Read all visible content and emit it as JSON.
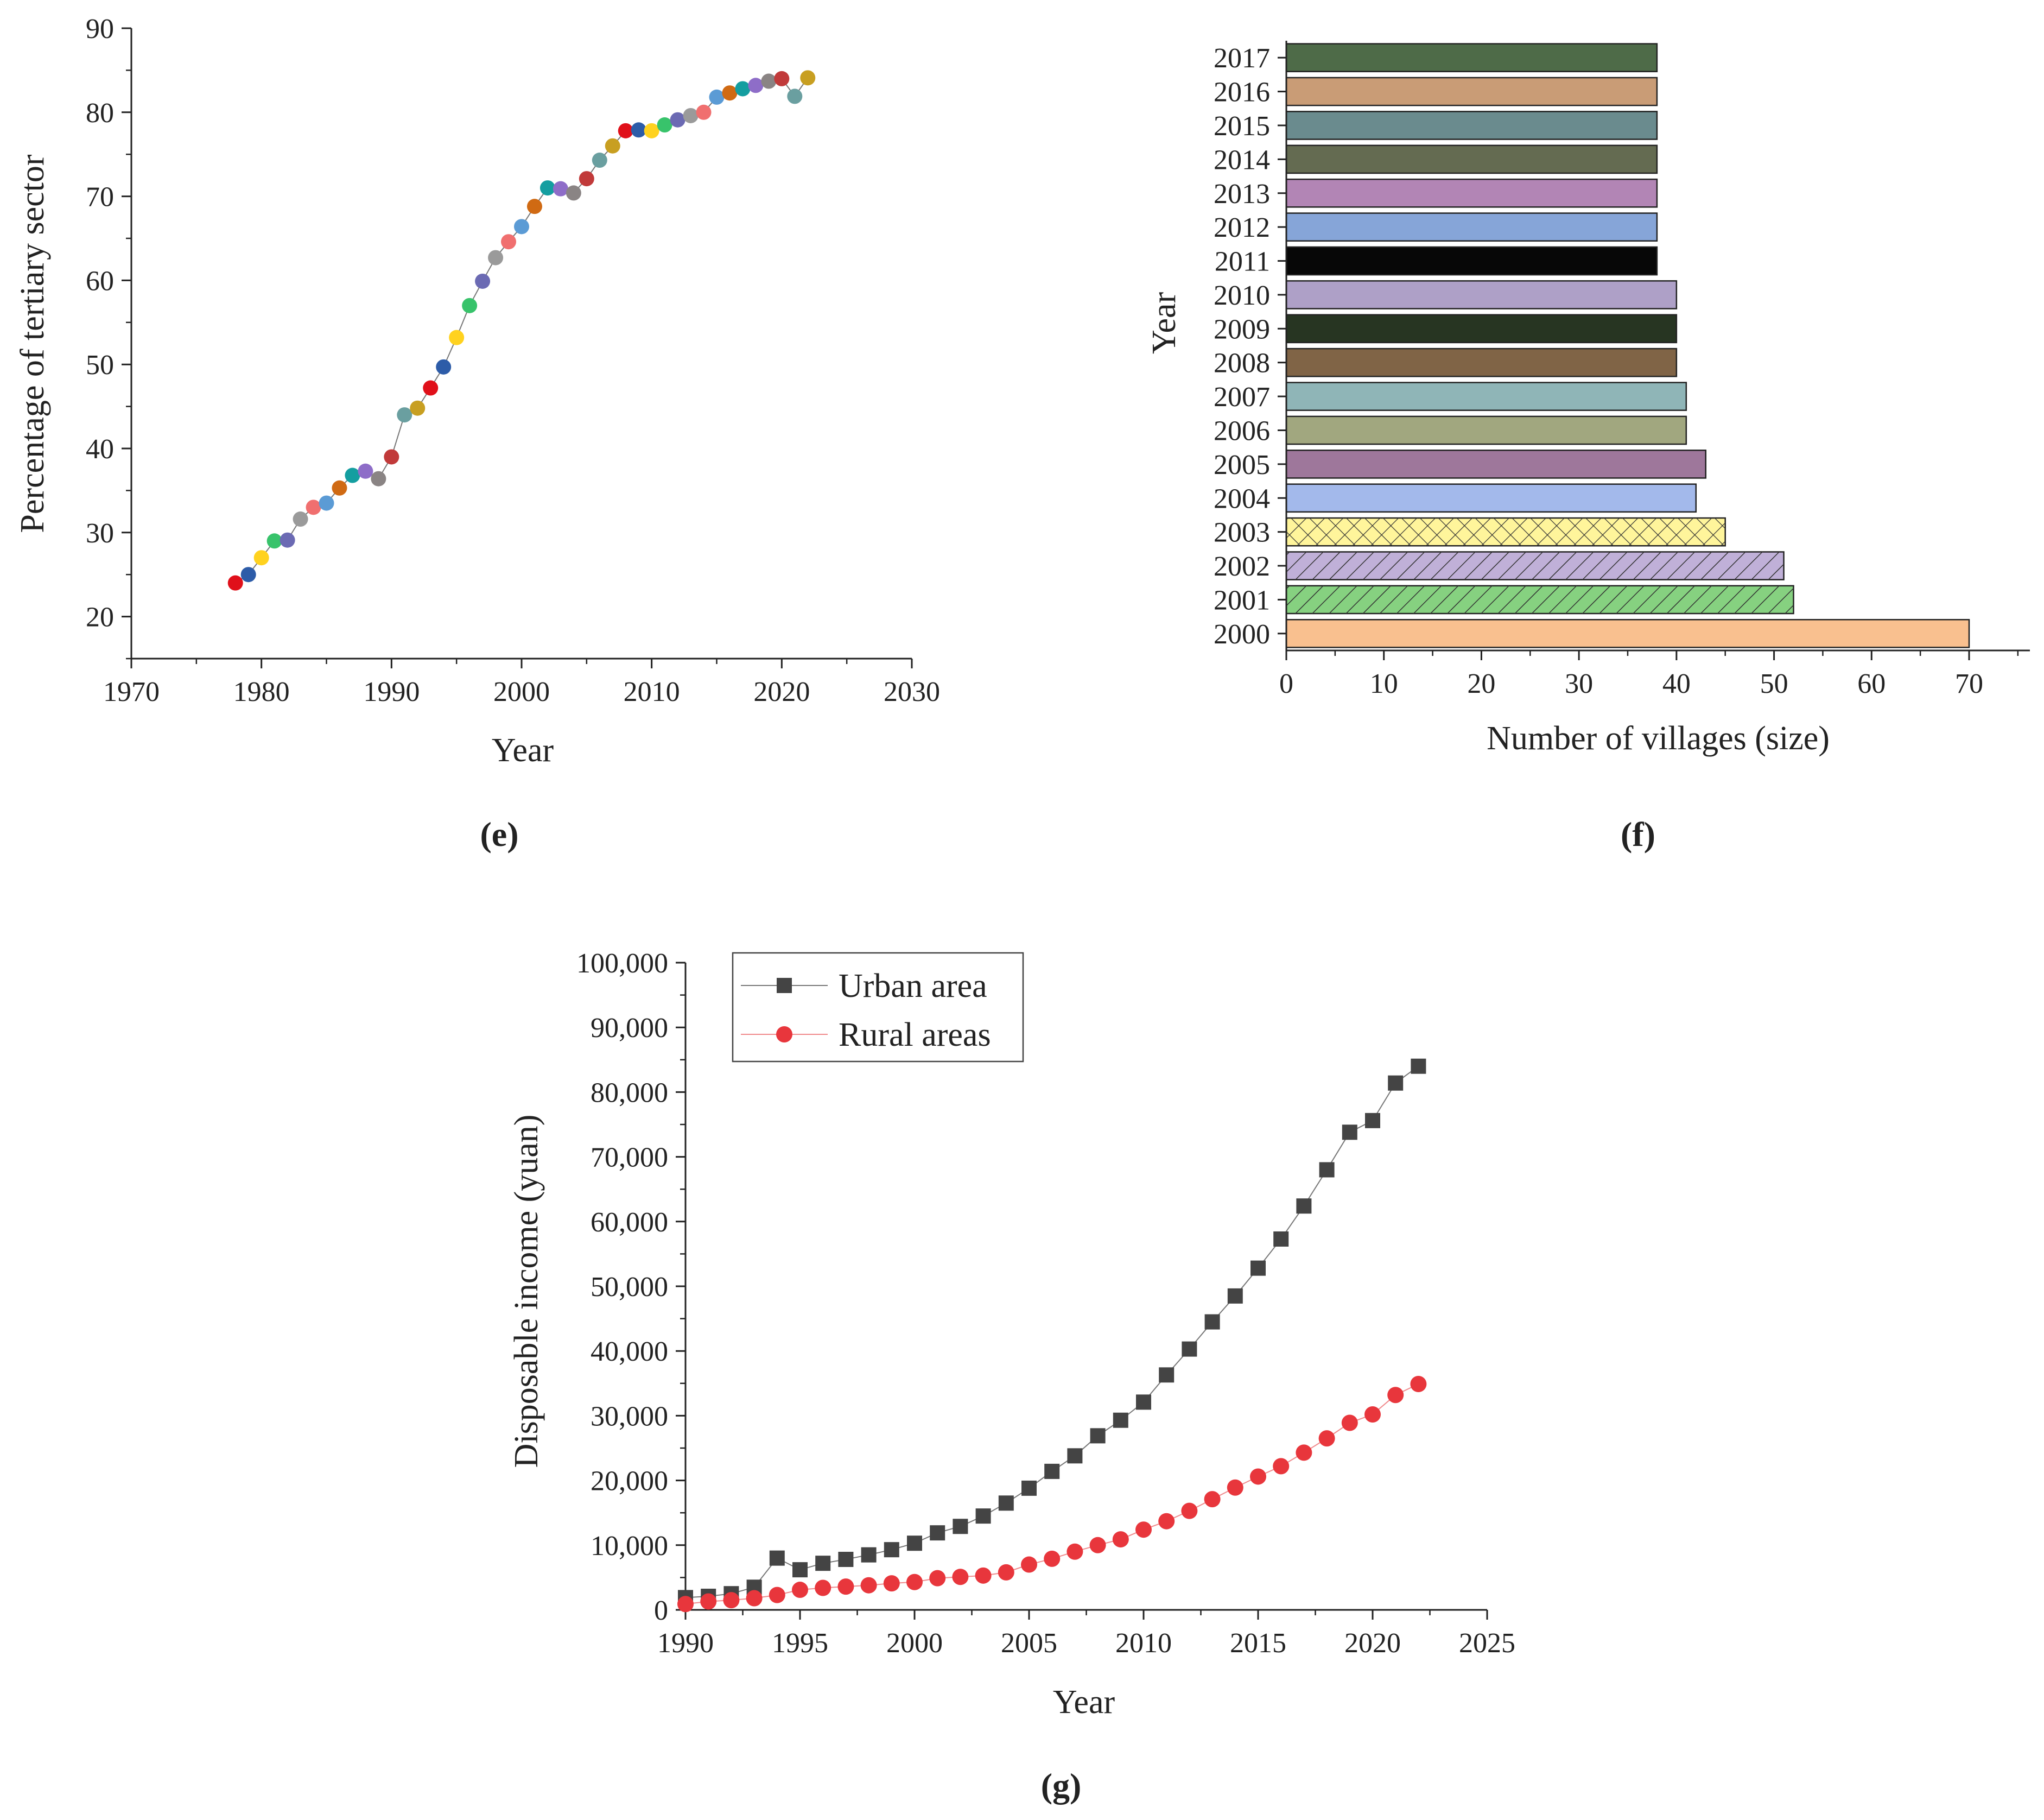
{
  "panels": {
    "e": {
      "label_open": "(",
      "label_letter": "e",
      "label_close": ")"
    },
    "f": {
      "label_open": "(",
      "label_letter": "f",
      "label_close": ")"
    },
    "g": {
      "label_open": "(",
      "label_letter": "g",
      "label_close": ")"
    }
  },
  "chart_data": [
    {
      "id": "e",
      "type": "scatter",
      "title": "",
      "xlabel": "Year",
      "ylabel": "Percentage of tertiary sector",
      "xlim": [
        1970,
        2030
      ],
      "ylim": [
        15,
        90
      ],
      "xticks": [
        1970,
        1980,
        1990,
        2000,
        2010,
        2020,
        2030
      ],
      "yticks": [
        20,
        30,
        40,
        50,
        60,
        70,
        80,
        90
      ],
      "grid": false,
      "connected": true,
      "x": [
        1978,
        1979,
        1980,
        1981,
        1982,
        1983,
        1984,
        1985,
        1986,
        1987,
        1988,
        1989,
        1990,
        1991,
        1992,
        1993,
        1994,
        1995,
        1996,
        1997,
        1998,
        1999,
        2000,
        2001,
        2002,
        2003,
        2004,
        2005,
        2006,
        2007,
        2008,
        2009,
        2010,
        2011,
        2012,
        2013,
        2014,
        2015,
        2016,
        2017,
        2018,
        2019,
        2020,
        2021,
        2022
      ],
      "y": [
        24.0,
        25.0,
        27.0,
        29.0,
        29.1,
        31.6,
        33.0,
        33.5,
        35.3,
        36.8,
        37.3,
        36.4,
        39.0,
        44.0,
        44.8,
        47.2,
        49.7,
        53.2,
        57.0,
        59.9,
        62.7,
        64.6,
        66.4,
        68.8,
        71.0,
        70.9,
        70.4,
        72.1,
        74.3,
        76.0,
        77.8,
        77.9,
        77.8,
        78.5,
        79.1,
        79.6,
        80.0,
        81.8,
        82.3,
        82.8,
        83.2,
        83.7,
        84.0,
        81.9,
        84.1
      ],
      "point_colors": [
        "#e0101a",
        "#2d5ca8",
        "#ffd21f",
        "#38c36b",
        "#6b6ab3",
        "#9a9a9a",
        "#f06f6f",
        "#5b9bd5",
        "#d06a13",
        "#149ea0",
        "#8e6dc8",
        "#8a8484",
        "#c13a3a",
        "#6a9fa0",
        "#c89f21",
        "#e0101a",
        "#2d5ca8",
        "#ffd21f",
        "#38c36b",
        "#6b6ab3",
        "#9a9a9a",
        "#f06f6f",
        "#5b9bd5",
        "#d06a13",
        "#149ea0",
        "#8e6dc8",
        "#8a8484",
        "#c13a3a",
        "#6a9fa0",
        "#c89f21",
        "#e0101a",
        "#2d5ca8",
        "#ffd21f",
        "#38c36b",
        "#6b6ab3",
        "#9a9a9a",
        "#f06f6f",
        "#5b9bd5",
        "#d06a13",
        "#149ea0",
        "#8e6dc8",
        "#8a8484",
        "#c13a3a",
        "#6a9fa0",
        "#c89f21"
      ]
    },
    {
      "id": "f",
      "type": "bar",
      "orientation": "horizontal",
      "title": "",
      "xlabel": "Number of villages (size)",
      "ylabel": "Year",
      "xlim": [
        0,
        75
      ],
      "xticks": [
        0,
        10,
        20,
        30,
        40,
        50,
        60,
        70
      ],
      "grid": false,
      "categories": [
        "2000",
        "2001",
        "2002",
        "2003",
        "2004",
        "2005",
        "2006",
        "2007",
        "2008",
        "2009",
        "2010",
        "2011",
        "2012",
        "2013",
        "2014",
        "2015",
        "2016",
        "2017"
      ],
      "values": [
        70,
        52,
        51,
        45,
        42,
        43,
        41,
        41,
        40,
        40,
        40,
        38,
        38,
        38,
        38,
        38,
        38,
        38
      ],
      "colors": [
        "#f9c08f",
        "#86d180",
        "#c0b0d8",
        "#fff59b",
        "#a3b9eb",
        "#9e779b",
        "#a1a77f",
        "#8fb5b7",
        "#806446",
        "#273522",
        "#aea0c7",
        "#070707",
        "#86a5d8",
        "#b285b5",
        "#646b51",
        "#6a8b8e",
        "#c99c76",
        "#4e6b48"
      ],
      "patterns": [
        "none",
        "diag",
        "diag",
        "cross",
        "none",
        "none",
        "none",
        "none",
        "none",
        "none",
        "none",
        "none",
        "none",
        "none",
        "none",
        "none",
        "none",
        "none"
      ]
    },
    {
      "id": "g",
      "type": "line",
      "title": "",
      "xlabel": "Year",
      "ylabel": "Disposable income (yuan)",
      "xlim": [
        1990,
        2025
      ],
      "ylim": [
        0,
        100000
      ],
      "xticks": [
        1990,
        1995,
        2000,
        2005,
        2010,
        2015,
        2020,
        2025
      ],
      "yticks": [
        0,
        10000,
        20000,
        30000,
        40000,
        50000,
        60000,
        70000,
        80000,
        90000,
        100000
      ],
      "ytick_labels": [
        "0",
        "10,000",
        "20,000",
        "30,000",
        "40,000",
        "50,000",
        "60,000",
        "70,000",
        "80,000",
        "90,000",
        "100,000"
      ],
      "grid": false,
      "legend": "top-left",
      "x": [
        1990,
        1991,
        1992,
        1993,
        1994,
        1995,
        1996,
        1997,
        1998,
        1999,
        2000,
        2001,
        2002,
        2003,
        2004,
        2005,
        2006,
        2007,
        2008,
        2009,
        2010,
        2011,
        2012,
        2013,
        2014,
        2015,
        2016,
        2017,
        2018,
        2019,
        2020,
        2021,
        2022
      ],
      "series": [
        {
          "name": "Urban area",
          "color": "#444444",
          "marker": "square",
          "values": [
            1900,
            2100,
            2500,
            3500,
            8000,
            6200,
            7200,
            7800,
            8500,
            9300,
            10300,
            11900,
            12900,
            14500,
            16500,
            18800,
            21400,
            23800,
            26900,
            29300,
            32100,
            36300,
            40300,
            44500,
            48500,
            52800,
            57300,
            62400,
            68000,
            73800,
            75600,
            81400,
            84000
          ]
        },
        {
          "name": "Rural areas",
          "color": "#e8363c",
          "marker": "circle",
          "values": [
            900,
            1300,
            1500,
            1800,
            2300,
            3100,
            3400,
            3600,
            3800,
            4100,
            4300,
            4900,
            5100,
            5300,
            5800,
            7000,
            7900,
            9000,
            10000,
            10900,
            12400,
            13700,
            15300,
            17100,
            18900,
            20600,
            22200,
            24300,
            26500,
            28900,
            30200,
            33200,
            34900
          ]
        }
      ]
    }
  ]
}
